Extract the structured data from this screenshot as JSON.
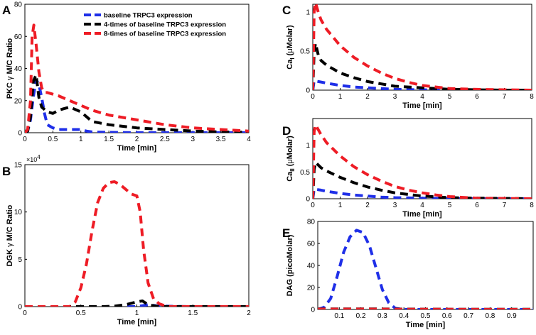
{
  "legend": [
    {
      "label": "baseline TRPC3 expression",
      "color": "#1f2fe8"
    },
    {
      "label": "4-times of baseline TRPC3 expression",
      "color": "#000000"
    },
    {
      "label": "8-times of baseline TRPC3 expression",
      "color": "#ee1c25"
    }
  ],
  "chart_data": [
    {
      "id": "A",
      "panel_label": "A",
      "type": "line",
      "xlabel": "Time [min]",
      "ylabel_parts": [
        "PKC ",
        "γ",
        " M/C Ratio"
      ],
      "xlim": [
        0,
        4
      ],
      "ylim": [
        0,
        80
      ],
      "xticks": [
        "0",
        "0.5",
        "1",
        "1.5",
        "2",
        "2.5",
        "3",
        "3.5",
        "4"
      ],
      "yticks": [
        "0",
        "20",
        "40",
        "60",
        "80"
      ],
      "series": [
        {
          "name": "baseline TRPC3 expression",
          "color": "#1f2fe8",
          "x": [
            0,
            0.05,
            0.1,
            0.15,
            0.2,
            0.25,
            0.3,
            0.35,
            0.4,
            0.5,
            0.6,
            0.8,
            1.0,
            1.1,
            1.2,
            1.5,
            2.0,
            2.5,
            3.0,
            3.5,
            4.0
          ],
          "y": [
            0,
            1,
            8,
            22,
            33,
            30,
            22,
            12,
            5,
            3,
            2,
            2,
            2,
            1,
            0.5,
            0.2,
            0,
            0,
            0,
            0,
            0
          ]
        },
        {
          "name": "4-times of baseline TRPC3 expression",
          "color": "#000000",
          "x": [
            0,
            0.05,
            0.1,
            0.15,
            0.2,
            0.25,
            0.3,
            0.4,
            0.5,
            0.6,
            0.8,
            1.0,
            1.1,
            1.2,
            1.5,
            2.0,
            2.5,
            3.0,
            3.5,
            4.0
          ],
          "y": [
            0,
            1,
            10,
            32,
            36,
            22,
            16,
            13,
            12,
            14,
            16,
            13,
            10,
            7,
            5,
            3,
            2,
            1,
            0.5,
            0.3
          ]
        },
        {
          "name": "8-times of baseline TRPC3 expression",
          "color": "#ee1c25",
          "x": [
            0,
            0.05,
            0.1,
            0.13,
            0.16,
            0.2,
            0.25,
            0.3,
            0.35,
            0.4,
            0.5,
            0.6,
            0.8,
            1.0,
            1.2,
            1.5,
            2.0,
            2.5,
            3.0,
            3.5,
            4.0
          ],
          "y": [
            0,
            2,
            20,
            60,
            67,
            55,
            38,
            28,
            25,
            25,
            24,
            23,
            20,
            17,
            14,
            11,
            8,
            5,
            3,
            2,
            1
          ]
        }
      ]
    },
    {
      "id": "B",
      "panel_label": "B",
      "type": "line",
      "xlabel": "Time [min]",
      "ylabel_parts": [
        "DGK ",
        "γ",
        " M/C Ratio"
      ],
      "exponent": "×10",
      "exponent_power": "4",
      "xlim": [
        0,
        2
      ],
      "ylim": [
        0,
        150000
      ],
      "xticks": [
        "0",
        "0.5",
        "1",
        "1.5",
        "2"
      ],
      "yticks": [
        "0",
        "5",
        "10",
        "15"
      ],
      "series": [
        {
          "name": "baseline TRPC3 expression",
          "color": "#1f2fe8",
          "x": [
            0,
            0.5,
            1.0,
            1.05,
            1.1,
            1.2,
            1.5,
            2.0
          ],
          "y": [
            0,
            0,
            0,
            1000,
            2000,
            500,
            0,
            0
          ]
        },
        {
          "name": "4-times of baseline TRPC3 expression",
          "color": "#000000",
          "x": [
            0,
            0.5,
            0.7,
            0.8,
            0.9,
            1.0,
            1.05,
            1.1,
            1.2,
            1.5,
            2.0
          ],
          "y": [
            0,
            0,
            0,
            500,
            2000,
            5000,
            6000,
            2000,
            0,
            0,
            0
          ]
        },
        {
          "name": "8-times of baseline TRPC3 expression",
          "color": "#ee1c25",
          "x": [
            0,
            0.4,
            0.45,
            0.5,
            0.55,
            0.6,
            0.65,
            0.7,
            0.75,
            0.8,
            0.85,
            0.9,
            0.95,
            1.0,
            1.03,
            1.06,
            1.1,
            1.15,
            1.2,
            1.25,
            1.3,
            1.5,
            2.0
          ],
          "y": [
            0,
            0,
            5000,
            20000,
            45000,
            80000,
            110000,
            125000,
            131000,
            132000,
            129000,
            124000,
            119000,
            117000,
            100000,
            60000,
            25000,
            8000,
            3000,
            1000,
            0,
            0,
            0
          ]
        }
      ]
    },
    {
      "id": "C",
      "panel_label": "C",
      "type": "line",
      "xlabel": "Time [min]",
      "ylabel_parts": [
        "Ca",
        "I",
        " (",
        "μ",
        "Molar)"
      ],
      "xlim": [
        0,
        8
      ],
      "ylim": [
        0,
        1.1
      ],
      "xticks": [
        "0",
        "1",
        "2",
        "3",
        "4",
        "5",
        "6",
        "7",
        "8"
      ],
      "yticks": [
        "0",
        "0.5",
        "1"
      ],
      "series": [
        {
          "name": "baseline TRPC3 expression",
          "color": "#1f2fe8",
          "x": [
            0,
            0.05,
            0.2,
            0.5,
            1,
            1.5,
            2,
            2.5,
            3,
            4,
            5,
            6,
            7,
            8
          ],
          "y": [
            0,
            0.12,
            0.11,
            0.09,
            0.06,
            0.04,
            0.03,
            0.02,
            0.01,
            0.005,
            0,
            0,
            0,
            0
          ]
        },
        {
          "name": "4-times of baseline TRPC3 expression",
          "color": "#000000",
          "x": [
            0,
            0.05,
            0.1,
            0.2,
            0.3,
            0.5,
            1,
            1.5,
            2,
            2.5,
            3,
            3.5,
            4,
            5,
            6,
            7,
            8
          ],
          "y": [
            0,
            0.5,
            0.6,
            0.45,
            0.38,
            0.32,
            0.22,
            0.16,
            0.11,
            0.08,
            0.05,
            0.04,
            0.03,
            0.01,
            0.005,
            0,
            0
          ]
        },
        {
          "name": "8-times of baseline TRPC3 expression",
          "color": "#ee1c25",
          "x": [
            0,
            0.05,
            0.1,
            0.2,
            0.3,
            0.5,
            1,
            1.5,
            2,
            2.5,
            3,
            3.5,
            4,
            4.5,
            5,
            6,
            7,
            8
          ],
          "y": [
            0,
            1.0,
            1.12,
            1.0,
            0.9,
            0.78,
            0.57,
            0.42,
            0.31,
            0.22,
            0.15,
            0.1,
            0.06,
            0.04,
            0.02,
            0.01,
            0.005,
            0
          ]
        }
      ]
    },
    {
      "id": "D",
      "panel_label": "D",
      "type": "line",
      "xlabel": "Time [min]",
      "ylabel_parts": [
        "Ca",
        "II",
        " (",
        "μ",
        "Molar)"
      ],
      "xlim": [
        0,
        8
      ],
      "ylim": [
        0,
        1.5
      ],
      "xticks": [
        "0",
        "1",
        "2",
        "3",
        "4",
        "5",
        "6",
        "7",
        "8"
      ],
      "yticks": [
        "0",
        "0.5",
        "1"
      ],
      "series": [
        {
          "name": "baseline TRPC3 expression",
          "color": "#1f2fe8",
          "x": [
            0,
            0.05,
            0.3,
            0.5,
            1,
            1.5,
            2,
            2.5,
            3,
            4,
            5,
            6,
            7,
            8
          ],
          "y": [
            0,
            0.18,
            0.16,
            0.14,
            0.1,
            0.07,
            0.05,
            0.03,
            0.02,
            0.01,
            0.005,
            0,
            0,
            0
          ]
        },
        {
          "name": "4-times of baseline TRPC3 expression",
          "color": "#000000",
          "x": [
            0,
            0.05,
            0.1,
            0.3,
            0.5,
            1,
            1.5,
            2,
            2.5,
            3,
            3.5,
            4,
            5,
            6,
            7,
            8
          ],
          "y": [
            0,
            0.55,
            0.68,
            0.58,
            0.52,
            0.4,
            0.3,
            0.22,
            0.16,
            0.11,
            0.08,
            0.05,
            0.02,
            0.01,
            0.005,
            0
          ]
        },
        {
          "name": "8-times of baseline TRPC3 expression",
          "color": "#ee1c25",
          "x": [
            0,
            0.05,
            0.1,
            0.3,
            0.5,
            1,
            1.5,
            2,
            2.5,
            3,
            3.5,
            4,
            4.5,
            5,
            6,
            7,
            8
          ],
          "y": [
            0,
            1.25,
            1.38,
            1.2,
            1.05,
            0.8,
            0.6,
            0.45,
            0.33,
            0.23,
            0.16,
            0.11,
            0.07,
            0.04,
            0.01,
            0.005,
            0
          ]
        }
      ]
    },
    {
      "id": "E",
      "panel_label": "E",
      "type": "line",
      "xlabel": "Time [min]",
      "ylabel_parts": [
        "DAG (picoMolar)"
      ],
      "xlim": [
        0,
        1
      ],
      "ylim": [
        0,
        80
      ],
      "xticks": [
        "0.1",
        "0.2",
        "0.3",
        "0.4",
        "0.5",
        "0.6",
        "0.7",
        "0.8",
        "0.9"
      ],
      "xtick_values": [
        0.1,
        0.2,
        0.3,
        0.4,
        0.5,
        0.6,
        0.7,
        0.8,
        0.9
      ],
      "yticks": [
        "0",
        "20",
        "40",
        "60",
        "80"
      ],
      "series": [
        {
          "name": "baseline TRPC3 expression",
          "color": "#1f2fe8",
          "x": [
            0,
            0.03,
            0.06,
            0.09,
            0.12,
            0.15,
            0.18,
            0.21,
            0.24,
            0.27,
            0.3,
            0.33,
            0.36,
            0.4,
            0.5,
            0.6,
            0.7,
            0.8,
            0.9,
            1.0
          ],
          "y": [
            0,
            2,
            10,
            30,
            52,
            66,
            72,
            70,
            58,
            38,
            18,
            6,
            1,
            0,
            0,
            0,
            0,
            0,
            0,
            0
          ]
        },
        {
          "name": "4-times of baseline TRPC3 expression",
          "color": "#000000",
          "x": [
            0,
            0.2,
            0.4,
            0.6,
            0.8,
            1.0
          ],
          "y": [
            0.5,
            0.5,
            0.3,
            0.2,
            0.1,
            0.1
          ]
        },
        {
          "name": "8-times of baseline TRPC3 expression",
          "color": "#ee1c25",
          "x": [
            0,
            0.2,
            0.4,
            0.6,
            0.8,
            1.0
          ],
          "y": [
            0.3,
            0.3,
            0.2,
            0.1,
            0.05,
            0
          ]
        }
      ]
    }
  ]
}
